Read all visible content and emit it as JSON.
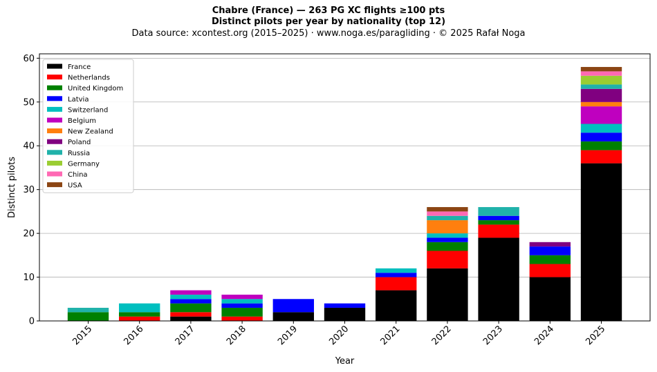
{
  "header": {
    "title": "Chabre (France)  —  263 PG XC flights ≥100 pts",
    "subtitle": "Distinct pilots per year by nationality (top 12)",
    "source": "Data source: xcontest.org (2015–2025)  ·  www.noga.es/paragliding  ·  © 2025 Rafał Noga"
  },
  "chart_data": {
    "type": "bar",
    "stacked": true,
    "xlabel": "Year",
    "ylabel": "Distinct pilots",
    "ylim": [
      0,
      61
    ],
    "yticks": [
      0,
      10,
      20,
      30,
      40,
      50,
      60
    ],
    "grid": "horizontal",
    "legend_position": "top-left",
    "categories": [
      "2015",
      "2016",
      "2017",
      "2018",
      "2019",
      "2020",
      "2021",
      "2022",
      "2023",
      "2024",
      "2025"
    ],
    "series": [
      {
        "name": "France",
        "color": "#000000",
        "values": [
          0,
          0,
          1,
          0,
          2,
          3,
          7,
          12,
          19,
          10,
          36
        ]
      },
      {
        "name": "Netherlands",
        "color": "#ff0000",
        "values": [
          0,
          1,
          1,
          1,
          0,
          0,
          3,
          4,
          3,
          3,
          3
        ]
      },
      {
        "name": "United Kingdom",
        "color": "#008000",
        "values": [
          2,
          1,
          2,
          2,
          0,
          0,
          0,
          2,
          1,
          2,
          2
        ]
      },
      {
        "name": "Latvia",
        "color": "#0000ff",
        "values": [
          0,
          0,
          1,
          1,
          3,
          1,
          1,
          1,
          1,
          2,
          2
        ]
      },
      {
        "name": "Switzerland",
        "color": "#00bfbf",
        "values": [
          0,
          2,
          1,
          1,
          0,
          0,
          1,
          1,
          0,
          0,
          2
        ]
      },
      {
        "name": "Belgium",
        "color": "#bf00bf",
        "values": [
          0,
          0,
          1,
          1,
          0,
          0,
          0,
          0,
          0,
          0,
          4
        ]
      },
      {
        "name": "New Zealand",
        "color": "#ff7f0e",
        "values": [
          0,
          0,
          0,
          0,
          0,
          0,
          0,
          3,
          0,
          0,
          1
        ]
      },
      {
        "name": "Poland",
        "color": "#800080",
        "values": [
          0,
          0,
          0,
          0,
          0,
          0,
          0,
          0,
          0,
          1,
          3
        ]
      },
      {
        "name": "Russia",
        "color": "#20b2aa",
        "values": [
          1,
          0,
          0,
          0,
          0,
          0,
          0,
          1,
          2,
          0,
          1
        ]
      },
      {
        "name": "Germany",
        "color": "#9acd32",
        "values": [
          0,
          0,
          0,
          0,
          0,
          0,
          0,
          0,
          0,
          0,
          2
        ]
      },
      {
        "name": "China",
        "color": "#ff69b4",
        "values": [
          0,
          0,
          0,
          0,
          0,
          0,
          0,
          1,
          0,
          0,
          1
        ]
      },
      {
        "name": "USA",
        "color": "#8b4513",
        "values": [
          0,
          0,
          0,
          0,
          0,
          0,
          0,
          1,
          0,
          0,
          1
        ]
      }
    ]
  }
}
